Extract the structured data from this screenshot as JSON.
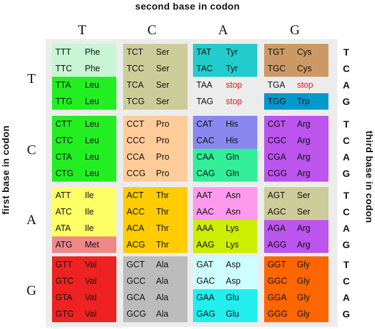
{
  "titles": {
    "top": "second base in codon",
    "left": "first base in codon",
    "right": "third base in codon"
  },
  "second_bases": [
    "T",
    "C",
    "A",
    "G"
  ],
  "first_bases": [
    "T",
    "C",
    "A",
    "G"
  ],
  "third_bases": [
    [
      "T",
      "C",
      "A",
      "G"
    ],
    [
      "T",
      "C",
      "A",
      "G"
    ],
    [
      "T",
      "C",
      "A",
      "G"
    ],
    [
      "T",
      "C",
      "A",
      "G"
    ]
  ],
  "colors": {
    "Phe": "#c8f5d4",
    "Leu": "#22ee22",
    "Ser": "#cccc99",
    "Pro": "#ffcc99",
    "Tyr": "#22cccc",
    "stop": "#ececec",
    "Cys": "#cc9966",
    "Trp": "#0099cc",
    "His": "#8888ee",
    "Gln": "#33ee99",
    "Arg": "#bb55ee",
    "Ile": "#ffff66",
    "Met": "#ee8888",
    "Thr": "#ffcc00",
    "Asn": "#ff99ee",
    "Lys": "#ccee00",
    "Val": "#ee2222",
    "Ala": "#bbbbbb",
    "Asp": "#ccffff",
    "Glu": "#22eeee",
    "Gly": "#ff6600"
  },
  "rows": [
    {
      "blocks": [
        [
          {
            "codon": "TTT",
            "aa": "Phe"
          },
          {
            "codon": "TTC",
            "aa": "Phe"
          },
          {
            "codon": "TTA",
            "aa": "Leu"
          },
          {
            "codon": "TTG",
            "aa": "Leu"
          }
        ],
        [
          {
            "codon": "TCT",
            "aa": "Ser"
          },
          {
            "codon": "TCC",
            "aa": "Ser"
          },
          {
            "codon": "TCA",
            "aa": "Ser"
          },
          {
            "codon": "TCG",
            "aa": "Ser"
          }
        ],
        [
          {
            "codon": "TAT",
            "aa": "Tyr"
          },
          {
            "codon": "TAC",
            "aa": "Tyr"
          },
          {
            "codon": "TAA",
            "aa": "stop"
          },
          {
            "codon": "TAG",
            "aa": "stop"
          }
        ],
        [
          {
            "codon": "TGT",
            "aa": "Cys"
          },
          {
            "codon": "TGC",
            "aa": "Cys"
          },
          {
            "codon": "TGA",
            "aa": "stop"
          },
          {
            "codon": "TGG",
            "aa": "Trp"
          }
        ]
      ]
    },
    {
      "blocks": [
        [
          {
            "codon": "CTT",
            "aa": "Leu"
          },
          {
            "codon": "CTC",
            "aa": "Leu"
          },
          {
            "codon": "CTA",
            "aa": "Leu"
          },
          {
            "codon": "CTG",
            "aa": "Leu"
          }
        ],
        [
          {
            "codon": "CCT",
            "aa": "Pro"
          },
          {
            "codon": "CCC",
            "aa": "Pro"
          },
          {
            "codon": "CCA",
            "aa": "Pro"
          },
          {
            "codon": "CCG",
            "aa": "Pro"
          }
        ],
        [
          {
            "codon": "CAT",
            "aa": "His"
          },
          {
            "codon": "CAC",
            "aa": "His"
          },
          {
            "codon": "CAA",
            "aa": "Gln"
          },
          {
            "codon": "CAG",
            "aa": "Gln"
          }
        ],
        [
          {
            "codon": "CGT",
            "aa": "Arg"
          },
          {
            "codon": "CGC",
            "aa": "Arg"
          },
          {
            "codon": "CGA",
            "aa": "Arg"
          },
          {
            "codon": "CGG",
            "aa": "Arg"
          }
        ]
      ]
    },
    {
      "blocks": [
        [
          {
            "codon": "ATT",
            "aa": "Ile"
          },
          {
            "codon": "ATC",
            "aa": "Ile"
          },
          {
            "codon": "ATA",
            "aa": "Ile"
          },
          {
            "codon": "ATG",
            "aa": "Met"
          }
        ],
        [
          {
            "codon": "ACT",
            "aa": "Thr"
          },
          {
            "codon": "ACC",
            "aa": "Thr"
          },
          {
            "codon": "ACA",
            "aa": "Thr"
          },
          {
            "codon": "ACG",
            "aa": "Thr"
          }
        ],
        [
          {
            "codon": "AAT",
            "aa": "Asn"
          },
          {
            "codon": "AAC",
            "aa": "Asn"
          },
          {
            "codon": "AAA",
            "aa": "Lys"
          },
          {
            "codon": "AAG",
            "aa": "Lys"
          }
        ],
        [
          {
            "codon": "AGT",
            "aa": "Ser"
          },
          {
            "codon": "AGC",
            "aa": "Ser"
          },
          {
            "codon": "AGA",
            "aa": "Arg"
          },
          {
            "codon": "AGG",
            "aa": "Arg"
          }
        ]
      ]
    },
    {
      "blocks": [
        [
          {
            "codon": "GTT",
            "aa": "Val"
          },
          {
            "codon": "GTC",
            "aa": "Val"
          },
          {
            "codon": "GTA",
            "aa": "Val"
          },
          {
            "codon": "GTG",
            "aa": "Val"
          }
        ],
        [
          {
            "codon": "GCT",
            "aa": "Ala"
          },
          {
            "codon": "GCC",
            "aa": "Ala"
          },
          {
            "codon": "GCA",
            "aa": "Ala"
          },
          {
            "codon": "GCG",
            "aa": "Ala"
          }
        ],
        [
          {
            "codon": "GAT",
            "aa": "Asp"
          },
          {
            "codon": "GAC",
            "aa": "Asp"
          },
          {
            "codon": "GAA",
            "aa": "Glu"
          },
          {
            "codon": "GAG",
            "aa": "Glu"
          }
        ],
        [
          {
            "codon": "GGT",
            "aa": "Gly"
          },
          {
            "codon": "GGC",
            "aa": "Gly"
          },
          {
            "codon": "GGA",
            "aa": "Gly"
          },
          {
            "codon": "GGG",
            "aa": "Gly"
          }
        ]
      ]
    }
  ]
}
